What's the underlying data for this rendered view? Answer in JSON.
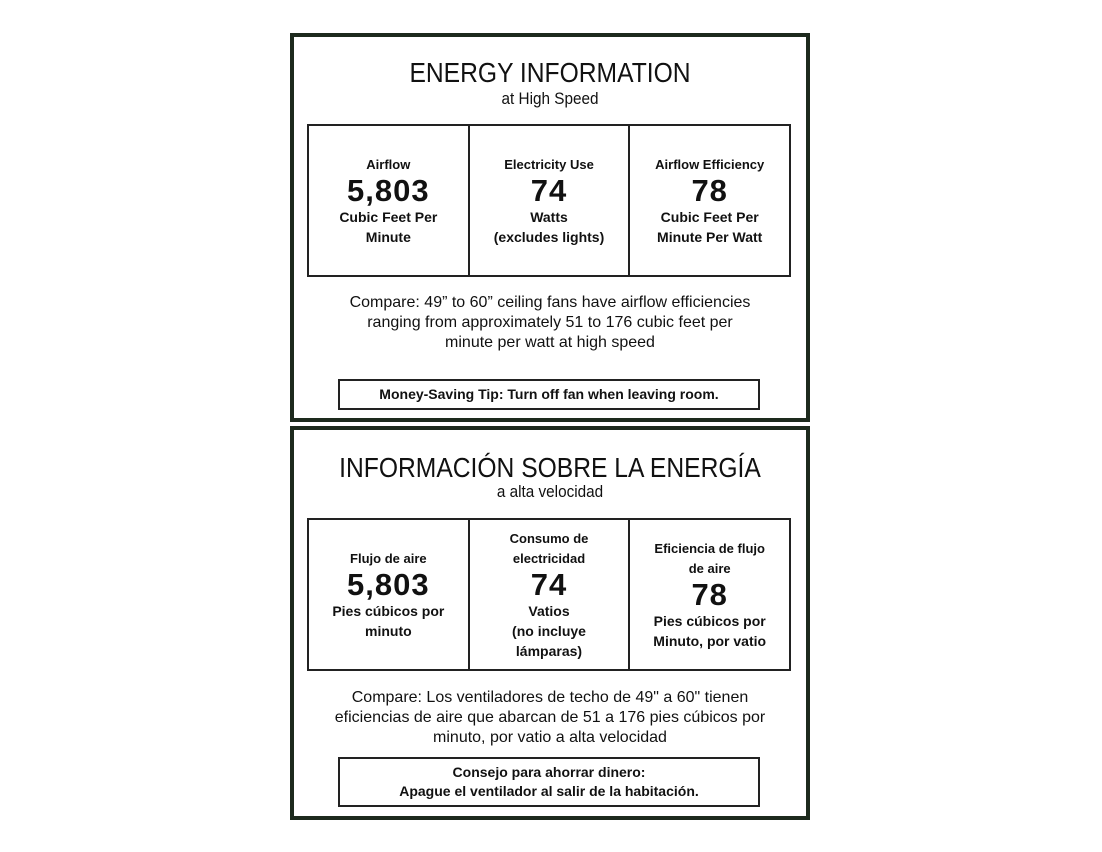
{
  "english": {
    "title": "ENERGY INFORMATION",
    "subtitle": "at High Speed",
    "cells": [
      {
        "label": [
          "Airflow"
        ],
        "value": "5,803",
        "unit": [
          "Cubic Feet Per",
          "Minute"
        ]
      },
      {
        "label": [
          "Electricity Use"
        ],
        "value": "74",
        "unit": [
          "Watts",
          "(excludes lights)"
        ]
      },
      {
        "label": [
          "Airflow Efficiency"
        ],
        "value": "78",
        "unit": [
          "Cubic Feet Per",
          "Minute Per Watt"
        ]
      }
    ],
    "compare": [
      "Compare: 49” to 60” ceiling fans have airflow efficiencies",
      "ranging from approximately 51 to 176 cubic feet per",
      "minute per watt at high speed"
    ],
    "tip": [
      "Money-Saving Tip: Turn off fan when leaving room."
    ]
  },
  "spanish": {
    "title": "INFORMACIÓN SOBRE LA ENERGÍA",
    "subtitle": "a alta velocidad",
    "cells": [
      {
        "label": [
          "Flujo de aire"
        ],
        "value": "5,803",
        "unit": [
          "Pies cúbicos por",
          "minuto"
        ]
      },
      {
        "label": [
          "Consumo de",
          "electricidad"
        ],
        "value": "74",
        "unit": [
          "Vatios",
          "(no incluye",
          "lámparas)"
        ]
      },
      {
        "label": [
          "Eficiencia de flujo",
          "de aire"
        ],
        "value": "78",
        "unit": [
          "Pies cúbicos por",
          "Minuto, por vatio"
        ]
      }
    ],
    "compare": [
      "Compare: Los ventiladores de techo de 49\" a 60\" tienen",
      "eficiencias de aire que abarcan de 51 a 176 pies cúbicos por",
      "minuto, por vatio a alta velocidad"
    ],
    "tip": [
      "Consejo para ahorrar dinero:",
      "Apague el ventilador al salir de la habitación."
    ]
  }
}
